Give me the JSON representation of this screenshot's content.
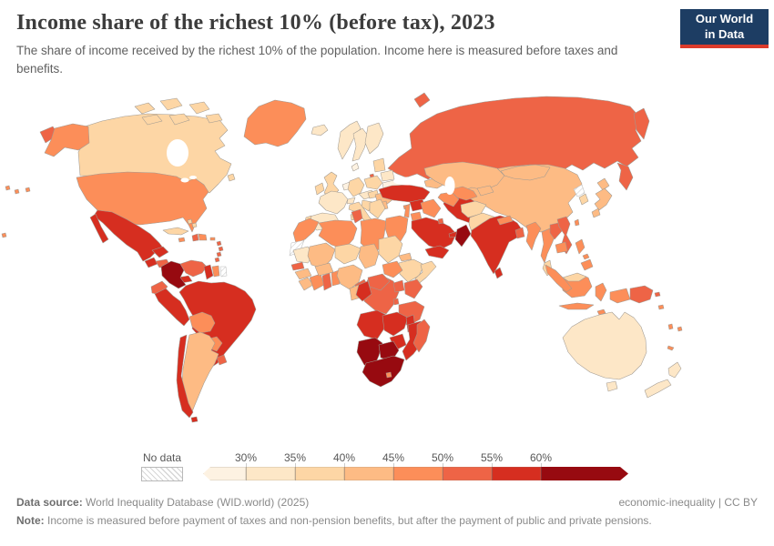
{
  "header": {
    "title": "Income share of the richest 10% (before tax), 2023",
    "subtitle": "The share of income received by the richest 10% of the population. Income here is measured before taxes and benefits."
  },
  "logo": {
    "line1": "Our World",
    "line2": "in Data",
    "bg": "#1d3d63",
    "accent": "#dc3b2b"
  },
  "legend": {
    "no_data_label": "No data",
    "tick_labels": [
      "30%",
      "35%",
      "40%",
      "45%",
      "50%",
      "55%",
      "60%"
    ]
  },
  "footer": {
    "data_source_label": "Data source:",
    "data_source": " World Inequality Database (WID.world) (2025)",
    "license": "economic-inequality | CC BY",
    "note_label": "Note:",
    "note": " Income is measured before payment of taxes and non-pension benefits, but after the payment of public and private pensions."
  },
  "chart_data": {
    "type": "choropleth",
    "title": "Income share of the richest 10% (before tax), 2023",
    "unit": "%",
    "legend_position": "bottom",
    "bins": [
      {
        "label": "<30%",
        "color": "#fdf2e2"
      },
      {
        "label": "30-35%",
        "color": "#fde7c7"
      },
      {
        "label": "35-40%",
        "color": "#fdd6a5"
      },
      {
        "label": "40-45%",
        "color": "#fdbb84"
      },
      {
        "label": "45-50%",
        "color": "#fc8e59"
      },
      {
        "label": "50-55%",
        "color": "#ee6446"
      },
      {
        "label": "55-60%",
        "color": "#d62e20"
      },
      {
        "label": ">60%",
        "color": "#970a10"
      }
    ],
    "no_data": {
      "label": "No data",
      "fill": "hatched"
    },
    "countries": {
      "canada": "35-40%",
      "greenland": "45-50%",
      "iceland": "30-35%",
      "united-states": "45-50%",
      "mexico": "55-60%",
      "guatemala": "55-60%",
      "honduras": "50-55%",
      "nicaragua": "50-55%",
      "costa-rica": "55-60%",
      "panama": "55-60%",
      "cuba": "35-40%",
      "jamaica": "45-50%",
      "haiti": "50-55%",
      "dominican-republic": "45-50%",
      "puerto-rico": "45-50%",
      "bahamas": "35-40%",
      "lesser-antilles": "50-55%",
      "trinidad-and-tobago": "50-55%",
      "colombia": ">60%",
      "venezuela": "50-55%",
      "guyana": "55-60%",
      "suriname": "45-50%",
      "french-guiana": "no-data",
      "ecuador": "50-55%",
      "peru": "55-60%",
      "brazil": "55-60%",
      "bolivia": "45-50%",
      "paraguay": "45-50%",
      "chile": "55-60%",
      "argentina": "40-45%",
      "uruguay": "50-55%",
      "norway": "30-35%",
      "sweden": "30-35%",
      "finland": "30-35%",
      "denmark": "<30%",
      "united-kingdom": "35-40%",
      "ireland": "35-40%",
      "france": "30-35%",
      "spain": "30-35%",
      "portugal": "35-40%",
      "belgium-netherlands": "<30%",
      "germany": "35-40%",
      "switzerland": "30-35%",
      "austria-czechia": "30-35%",
      "italy": "35-40%",
      "poland": "35-40%",
      "baltic-states": "35-40%",
      "belarus": "30-35%",
      "ukraine": "<30%",
      "romania": "40-45%",
      "hungary": "35-40%",
      "balkans": "35-40%",
      "greece": "35-40%",
      "bulgaria": "40-45%",
      "russia": "50-55%",
      "turkey": "55-60%",
      "cyprus": "45-50%",
      "caucasus": "40-45%",
      "syria": "55-60%",
      "lebanon-israel": "45-50%",
      "jordan": "45-50%",
      "iraq": "45-50%",
      "iran": "55-60%",
      "saudi-arabia": "55-60%",
      "kuwait": "50-55%",
      "uae-qatar": "55-60%",
      "oman": ">60%",
      "yemen": "55-60%",
      "kazakhstan": "40-45%",
      "uzbekistan": "45-50%",
      "turkmenistan": "45-50%",
      "kyrgyzstan-tajikistan": "40-45%",
      "afghanistan": "35-40%",
      "pakistan": "35-40%",
      "india": "55-60%",
      "nepal": "45-50%",
      "bangladesh": "50-55%",
      "sri-lanka": "55-60%",
      "myanmar": "45-50%",
      "china": "40-45%",
      "mongolia": "40-45%",
      "north-korea": "no-data",
      "south-korea": "35-40%",
      "japan": "40-45%",
      "taiwan": "45-50%",
      "thailand": "45-50%",
      "laos": "50-55%",
      "vietnam": "50-55%",
      "cambodia": "45-50%",
      "malaysia": "35-40%",
      "indonesia": "45-50%",
      "philippines": "45-50%",
      "timor-leste": "45-50%",
      "papua-new-guinea": "50-55%",
      "pacific-islands": "45-50%",
      "morocco": "45-50%",
      "western-sahara": "no-data",
      "algeria": "45-50%",
      "tunisia": "50-55%",
      "libya": "45-50%",
      "egypt": "45-50%",
      "mauritania": "30-35%",
      "mali": "40-45%",
      "niger": "35-40%",
      "chad": "40-45%",
      "sudan": "35-40%",
      "eritrea-djibouti": "40-45%",
      "ethiopia": "35-40%",
      "somalia": "35-40%",
      "senegal-gambia": "50-55%",
      "guinea": "40-45%",
      "sierra-leone-liberia": "40-45%",
      "cote-divoire": "45-50%",
      "ghana": "50-55%",
      "togo-benin": "45-50%",
      "burkina-faso": "40-45%",
      "nigeria": "40-45%",
      "cameroon": "50-55%",
      "central-african-republic": "50-55%",
      "south-sudan": "45-50%",
      "uganda": "50-55%",
      "kenya": "50-55%",
      "gabon": "40-45%",
      "congo": "55-60%",
      "democratic-republic-of-congo": "50-55%",
      "rwanda-burundi": "50-55%",
      "tanzania": "50-55%",
      "angola": "55-60%",
      "zambia": "55-60%",
      "malawi": "55-60%",
      "mozambique": "55-60%",
      "zimbabwe": "55-60%",
      "namibia": ">60%",
      "botswana": ">60%",
      "south-africa": ">60%",
      "lesotho": "45-50%",
      "madagascar": "50-55%",
      "australia": "30-35%",
      "new-zealand": "30-35%"
    }
  }
}
